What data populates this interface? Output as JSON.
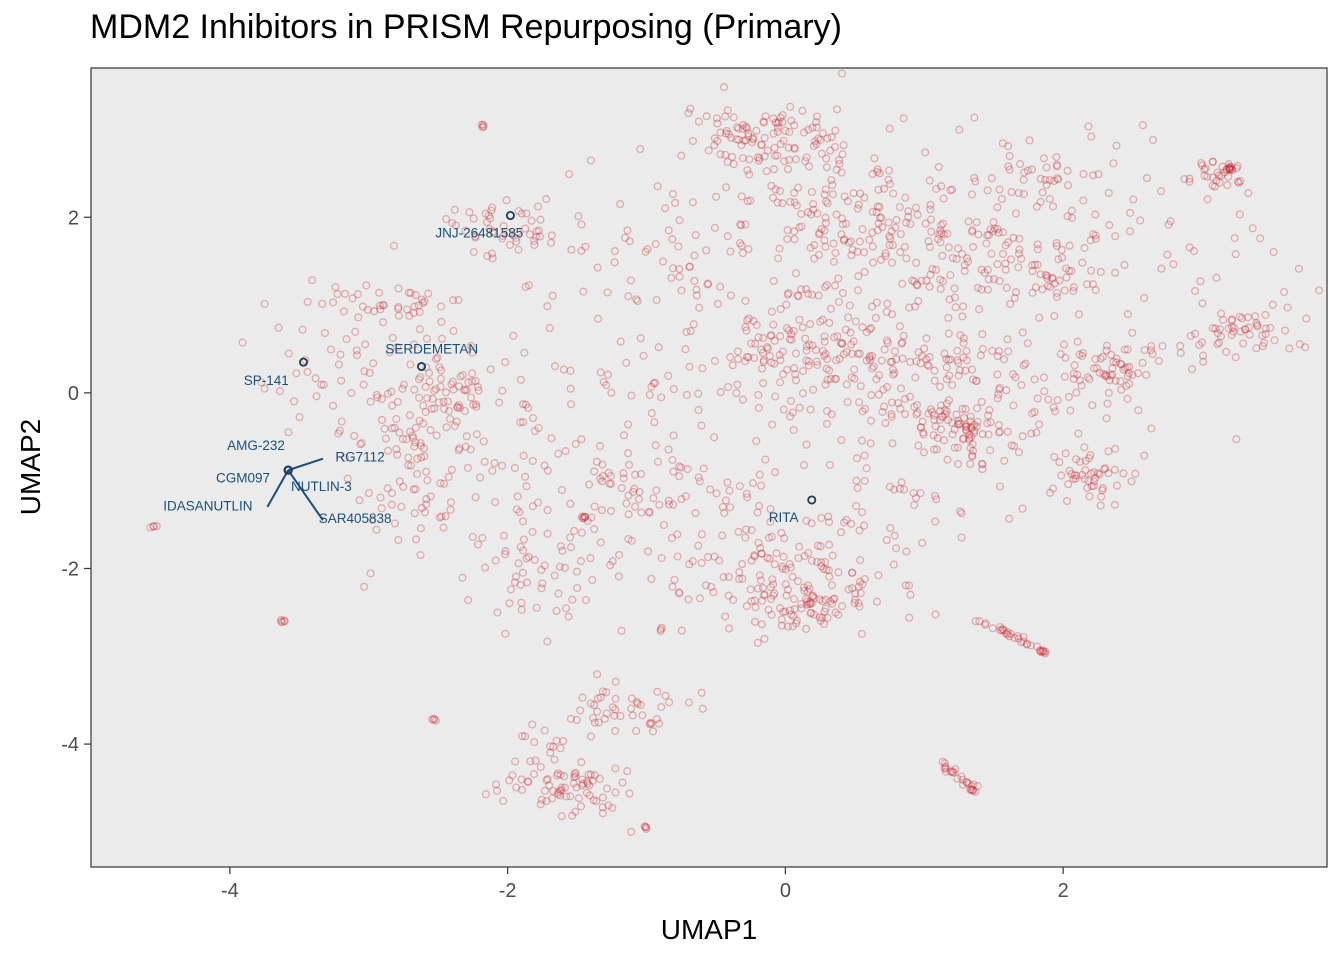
{
  "chart_data": {
    "type": "scatter",
    "title": "MDM2 Inhibitors in PRISM Repurposing (Primary)",
    "xlabel": "UMAP1",
    "ylabel": "UMAP2",
    "xlim": [
      -5.0,
      3.9
    ],
    "ylim": [
      -5.4,
      3.7
    ],
    "x_ticks": [
      -4,
      -2,
      0,
      2
    ],
    "x_tick_labels": [
      "-4",
      "-2",
      "0",
      "2"
    ],
    "y_ticks": [
      2,
      0,
      -2,
      -4
    ],
    "y_tick_labels": [
      "2",
      "0",
      "-2",
      "-4"
    ],
    "grid": false,
    "background_color": "#ebebeb",
    "background_point_color": "#c8232c",
    "highlight_color": "#1f3b57",
    "label_color": "#1a4f7a",
    "background_clusters": [
      {
        "cx": -0.2,
        "cy": 2.9,
        "sx": 0.25,
        "sy": 0.2,
        "n": 90
      },
      {
        "cx": 0.2,
        "cy": 2.2,
        "sx": 0.6,
        "sy": 0.5,
        "n": 110
      },
      {
        "cx": 0.7,
        "cy": 1.9,
        "sx": 0.5,
        "sy": 0.35,
        "n": 80
      },
      {
        "cx": 1.4,
        "cy": 1.9,
        "sx": 0.5,
        "sy": 0.4,
        "n": 70
      },
      {
        "cx": 1.9,
        "cy": 2.4,
        "sx": 0.25,
        "sy": 0.15,
        "n": 30
      },
      {
        "cx": 1.1,
        "cy": 1.3,
        "sx": 0.5,
        "sy": 0.4,
        "n": 80
      },
      {
        "cx": 1.9,
        "cy": 1.3,
        "sx": 0.15,
        "sy": 0.1,
        "n": 25
      },
      {
        "cx": 0.0,
        "cy": 0.5,
        "sx": 0.35,
        "sy": 0.25,
        "n": 80
      },
      {
        "cx": 0.5,
        "cy": 0.4,
        "sx": 0.4,
        "sy": 0.4,
        "n": 60
      },
      {
        "cx": 1.3,
        "cy": 0.3,
        "sx": 0.3,
        "sy": 0.2,
        "n": 40
      },
      {
        "cx": 1.3,
        "cy": -0.4,
        "sx": 0.2,
        "sy": 0.2,
        "n": 70
      },
      {
        "cx": 2.2,
        "cy": -0.9,
        "sx": 0.15,
        "sy": 0.15,
        "n": 45
      },
      {
        "cx": 2.4,
        "cy": 0.3,
        "sx": 0.25,
        "sy": 0.15,
        "n": 55
      },
      {
        "cx": 3.3,
        "cy": 0.7,
        "sx": 0.2,
        "sy": 0.15,
        "n": 50
      },
      {
        "cx": 3.1,
        "cy": 2.5,
        "sx": 0.1,
        "sy": 0.08,
        "n": 30
      },
      {
        "cx": 0.1,
        "cy": -2.4,
        "sx": 0.25,
        "sy": 0.15,
        "n": 80
      },
      {
        "cx": -0.3,
        "cy": -1.9,
        "sx": 0.45,
        "sy": 0.35,
        "n": 100
      },
      {
        "cx": 0.5,
        "cy": -1.9,
        "sx": 0.3,
        "sy": 0.4,
        "n": 40
      },
      {
        "cx": -1.7,
        "cy": -2.0,
        "sx": 0.3,
        "sy": 0.4,
        "n": 60
      },
      {
        "cx": -1.0,
        "cy": -1.0,
        "sx": 0.3,
        "sy": 0.3,
        "n": 50
      },
      {
        "cx": -1.2,
        "cy": -3.6,
        "sx": 0.2,
        "sy": 0.15,
        "n": 45
      },
      {
        "cx": -1.6,
        "cy": -4.5,
        "sx": 0.25,
        "sy": 0.15,
        "n": 70
      },
      {
        "cx": -1.7,
        "cy": -4.0,
        "sx": 0.15,
        "sy": 0.3,
        "n": 20
      },
      {
        "cx": -2.9,
        "cy": 1.0,
        "sx": 0.25,
        "sy": 0.15,
        "n": 40
      },
      {
        "cx": -3.1,
        "cy": 0.3,
        "sx": 0.4,
        "sy": 0.4,
        "n": 50
      },
      {
        "cx": -2.7,
        "cy": -0.3,
        "sx": 0.3,
        "sy": 0.3,
        "n": 50
      },
      {
        "cx": -2.3,
        "cy": 0.0,
        "sx": 0.3,
        "sy": 0.3,
        "n": 60
      },
      {
        "cx": -2.1,
        "cy": 1.9,
        "sx": 0.25,
        "sy": 0.15,
        "n": 45
      },
      {
        "cx": -1.2,
        "cy": 1.5,
        "sx": 0.6,
        "sy": 0.5,
        "n": 60
      },
      {
        "cx": -0.8,
        "cy": 0.0,
        "sx": 0.6,
        "sy": 0.5,
        "n": 60
      },
      {
        "cx": -2.7,
        "cy": -1.2,
        "sx": 0.2,
        "sy": 0.35,
        "n": 40
      },
      {
        "cx": 0.9,
        "cy": -0.2,
        "sx": 0.7,
        "sy": 0.7,
        "n": 80
      },
      {
        "cx": 2.7,
        "cy": 1.6,
        "sx": 0.6,
        "sy": 0.6,
        "n": 60
      },
      {
        "cx": 1.7,
        "cy": -0.2,
        "sx": 0.5,
        "sy": 0.5,
        "n": 60
      },
      {
        "cx": -1.9,
        "cy": -1.0,
        "sx": 0.5,
        "sy": 0.4,
        "n": 45
      }
    ],
    "background_tails": [
      {
        "x0": 1.4,
        "y0": -2.6,
        "x1": 1.8,
        "y1": -2.9,
        "n": 25
      },
      {
        "x0": 1.1,
        "y0": -4.2,
        "x1": 1.35,
        "y1": -4.5,
        "n": 22
      },
      {
        "x0": 0.5,
        "y0": -1.0,
        "x1": 1.1,
        "y1": -1.2,
        "n": 10
      }
    ],
    "background_tight": [
      {
        "x": -4.55,
        "y": -1.52,
        "n": 4
      },
      {
        "x": -3.62,
        "y": -2.6,
        "n": 5
      },
      {
        "x": -2.52,
        "y": -3.72,
        "n": 4
      },
      {
        "x": -2.18,
        "y": 3.04,
        "n": 4
      },
      {
        "x": -1.0,
        "y": -4.95,
        "n": 4
      },
      {
        "x": 1.85,
        "y": -2.95,
        "n": 8
      },
      {
        "x": 1.35,
        "y": -4.52,
        "n": 5
      },
      {
        "x": 3.2,
        "y": 2.55,
        "n": 10
      },
      {
        "x": -1.45,
        "y": -1.42,
        "n": 6
      },
      {
        "x": -0.9,
        "y": -2.7,
        "n": 3
      }
    ],
    "highlighted": [
      {
        "name": "JNJ-26481585",
        "x": -1.98,
        "y": 2.02,
        "label_x": -2.52,
        "label_y": 1.77,
        "leader": false
      },
      {
        "name": "SERDEMETAN",
        "x": -2.62,
        "y": 0.3,
        "label_x": -2.88,
        "label_y": 0.45,
        "leader": false
      },
      {
        "name": "SP-141",
        "x": -3.47,
        "y": 0.35,
        "label_x": -3.9,
        "label_y": 0.09,
        "leader": false
      },
      {
        "name": "AMG-232",
        "x": -3.58,
        "y": -0.88,
        "label_x": -4.02,
        "label_y": -0.65,
        "leader": false
      },
      {
        "name": "RG7112",
        "x": -3.58,
        "y": -0.88,
        "label_x": -3.24,
        "label_y": -0.78,
        "leader": true,
        "lx": -3.33,
        "ly": -0.75
      },
      {
        "name": "CGM097",
        "x": -3.58,
        "y": -0.88,
        "label_x": -4.1,
        "label_y": -1.02,
        "leader": false
      },
      {
        "name": "NUTLIN-3",
        "x": -3.58,
        "y": -0.88,
        "label_x": -3.56,
        "label_y": -1.12,
        "leader": false
      },
      {
        "name": "IDASANUTLIN",
        "x": -3.58,
        "y": -0.88,
        "label_x": -4.48,
        "label_y": -1.34,
        "leader": true,
        "lx": -3.73,
        "ly": -1.3
      },
      {
        "name": "SAR405838",
        "x": -3.58,
        "y": -0.88,
        "label_x": -3.36,
        "label_y": -1.48,
        "leader": true,
        "lx": -3.33,
        "ly": -1.45
      },
      {
        "name": "RITA",
        "x": 0.19,
        "y": -1.22,
        "label_x": -0.12,
        "label_y": -1.47,
        "leader": false
      }
    ]
  }
}
